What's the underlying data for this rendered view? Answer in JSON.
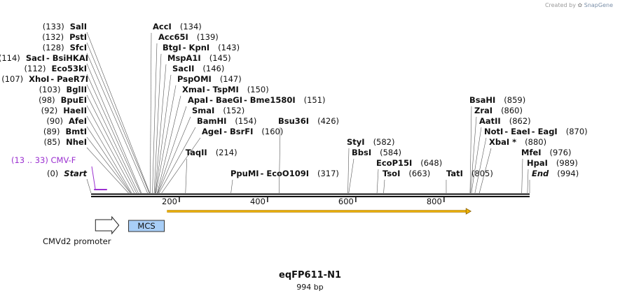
{
  "credit": {
    "prefix": "Created by",
    "brand": "SnapGene"
  },
  "plasmid": {
    "name": "eqFP611-N1",
    "size_label": "994 bp",
    "length": 994
  },
  "ruler": {
    "ticks": [
      200,
      400,
      600,
      800
    ]
  },
  "features": {
    "promoter": {
      "label": "CMVd2 promoter",
      "start": 10,
      "end": 63
    },
    "mcs": {
      "label": "MCS",
      "start": 85,
      "end": 166
    },
    "orf": {
      "start": 172,
      "end": 861
    },
    "primer": {
      "label": "CMV-F",
      "range": "(13 .. 33)",
      "start": 13,
      "end": 33,
      "color": "#9b30d0"
    }
  },
  "sites": [
    {
      "name": "Start",
      "pos": "(0)",
      "bp": 0,
      "side": "left",
      "row": 0,
      "italic": true
    },
    {
      "name": "NheI",
      "pos": "(85)",
      "bp": 85,
      "side": "left",
      "row": 3
    },
    {
      "name": "BmtI",
      "pos": "(89)",
      "bp": 89,
      "side": "left",
      "row": 4
    },
    {
      "name": "AfeI",
      "pos": "(90)",
      "bp": 90,
      "side": "left",
      "row": 5
    },
    {
      "name": "HaeII",
      "pos": "(92)",
      "bp": 92,
      "side": "left",
      "row": 6
    },
    {
      "name": "BpuEI",
      "pos": "(98)",
      "bp": 98,
      "side": "left",
      "row": 7
    },
    {
      "name": "BglII",
      "pos": "(103)",
      "bp": 103,
      "side": "left",
      "row": 8
    },
    {
      "name": "XhoI",
      "pos": "(107)",
      "bp": 107,
      "side": "left",
      "row": 9,
      "extra": "PaeR7I"
    },
    {
      "name": "Eco53kI",
      "pos": "(112)",
      "bp": 112,
      "side": "left",
      "row": 10
    },
    {
      "name": "SacI",
      "pos": "(114)",
      "bp": 114,
      "side": "left",
      "row": 11,
      "extra": "BsiHKAI"
    },
    {
      "name": "SfcI",
      "pos": "(128)",
      "bp": 128,
      "side": "left",
      "row": 12
    },
    {
      "name": "PstI",
      "pos": "(132)",
      "bp": 132,
      "side": "left",
      "row": 13
    },
    {
      "name": "SalI",
      "pos": "(133)",
      "bp": 133,
      "side": "left",
      "row": 14
    },
    {
      "name": "AccI",
      "pos": "(134)",
      "bp": 134,
      "side": "right",
      "row": 14
    },
    {
      "name": "Acc65I",
      "pos": "(139)",
      "bp": 139,
      "side": "right",
      "row": 13
    },
    {
      "name": "BtgI",
      "pos": "(143)",
      "bp": 143,
      "side": "right",
      "row": 12,
      "extra": "KpnI"
    },
    {
      "name": "MspA1I",
      "pos": "(145)",
      "bp": 145,
      "side": "right",
      "row": 11
    },
    {
      "name": "SacII",
      "pos": "(146)",
      "bp": 146,
      "side": "right",
      "row": 10
    },
    {
      "name": "PspOMI",
      "pos": "(147)",
      "bp": 147,
      "side": "right",
      "row": 9
    },
    {
      "name": "XmaI",
      "pos": "(150)",
      "bp": 150,
      "side": "right",
      "row": 8,
      "extra": "TspMI"
    },
    {
      "name": "ApaI",
      "pos": "(151)",
      "bp": 151,
      "side": "right",
      "row": 7,
      "extra": "BaeGI",
      "extra2": "Bme1580I"
    },
    {
      "name": "SmaI",
      "pos": "(152)",
      "bp": 152,
      "side": "right",
      "row": 6
    },
    {
      "name": "BamHI",
      "pos": "(154)",
      "bp": 154,
      "side": "right",
      "row": 5
    },
    {
      "name": "AgeI",
      "pos": "(160)",
      "bp": 160,
      "side": "right",
      "row": 4,
      "extra": "BsrFI"
    },
    {
      "name": "TaqII",
      "pos": "(214)",
      "bp": 214,
      "side": "right",
      "row": 2
    },
    {
      "name": "PpuMI",
      "pos": "(317)",
      "bp": 317,
      "side": "right",
      "row": 0,
      "extra": "EcoO109I",
      "nameBp": 317
    },
    {
      "name": "Bsu36I",
      "pos": "(426)",
      "bp": 426,
      "side": "right",
      "row": 5
    },
    {
      "name": "StyI",
      "pos": "(582)",
      "bp": 582,
      "side": "right",
      "row": 3
    },
    {
      "name": "BbsI",
      "pos": "(584)",
      "bp": 584,
      "side": "right",
      "row": 2
    },
    {
      "name": "EcoP15I",
      "pos": "(648)",
      "bp": 648,
      "side": "right",
      "row": 1
    },
    {
      "name": "TsoI",
      "pos": "(663)",
      "bp": 663,
      "side": "right",
      "row": 0
    },
    {
      "name": "TatI",
      "pos": "(805)",
      "bp": 805,
      "side": "right",
      "row": 0
    },
    {
      "name": "BsaHI",
      "pos": "(859)",
      "bp": 859,
      "side": "right",
      "row": 7
    },
    {
      "name": "ZraI",
      "pos": "(860)",
      "bp": 860,
      "side": "right",
      "row": 6
    },
    {
      "name": "AatII",
      "pos": "(862)",
      "bp": 862,
      "side": "right",
      "row": 5
    },
    {
      "name": "NotI",
      "pos": "(870)",
      "bp": 870,
      "side": "right",
      "row": 4,
      "extra": "EaeI",
      "extra2": "EagI"
    },
    {
      "name": "XbaI *",
      "pos": "(880)",
      "bp": 880,
      "side": "right",
      "row": 3
    },
    {
      "name": "MfeI",
      "pos": "(976)",
      "bp": 976,
      "side": "right",
      "row": 2
    },
    {
      "name": "HpaI",
      "pos": "(989)",
      "bp": 989,
      "side": "right",
      "row": 1
    },
    {
      "name": "End",
      "pos": "(994)",
      "bp": 994,
      "side": "right",
      "row": 0,
      "italic": true
    }
  ]
}
